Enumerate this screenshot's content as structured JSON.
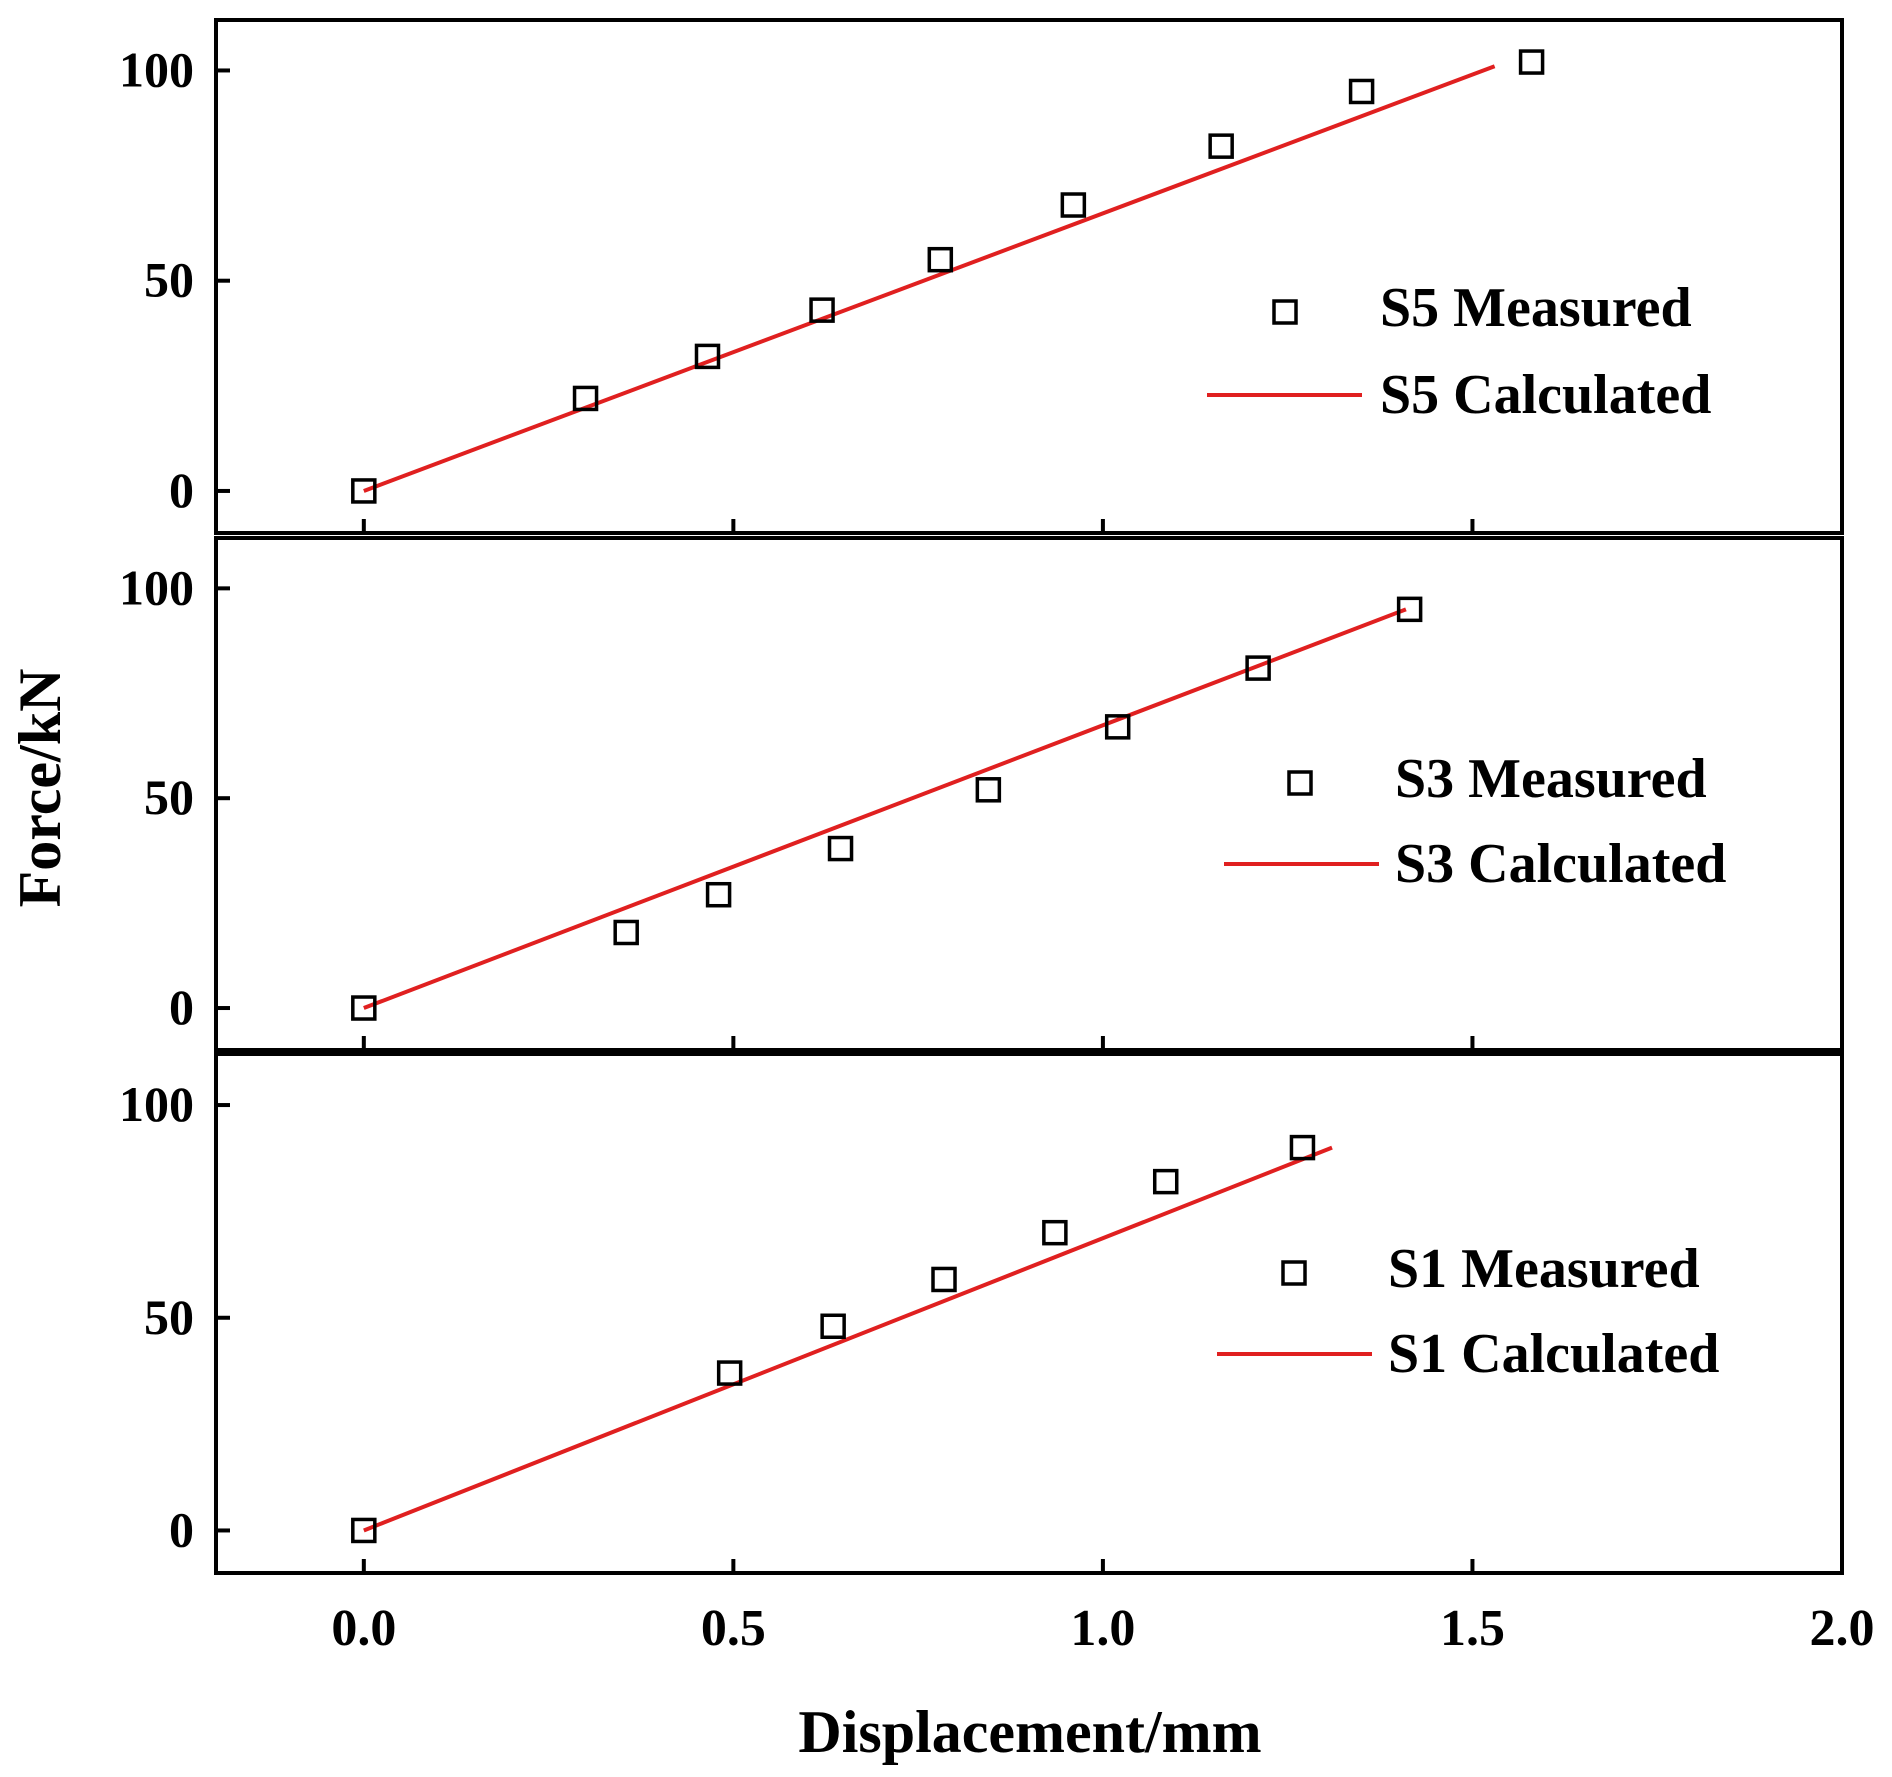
{
  "chart_data": {
    "type": "scatter",
    "xlabel": "Displacement/mm",
    "ylabel": "Force/kN",
    "xlim": [
      -0.2,
      2.0
    ],
    "ylim": [
      -10,
      112
    ],
    "x_ticks": [
      0.0,
      0.5,
      1.0,
      1.5,
      2.0
    ],
    "x_tick_labels": [
      "0.0",
      "0.5",
      "1.0",
      "1.5",
      "2.0"
    ],
    "y_ticks": [
      0,
      50,
      100
    ],
    "y_tick_labels": [
      "0",
      "50",
      "100"
    ],
    "legend_position": "right",
    "colors": {
      "measured": "#000000",
      "calculated": "#e02020"
    },
    "panels": [
      {
        "name": "S5",
        "series": [
          {
            "name": "S5 Measured",
            "kind": "scatter",
            "marker": "open-square",
            "x": [
              0.0,
              0.3,
              0.465,
              0.62,
              0.78,
              0.96,
              1.16,
              1.35,
              1.58
            ],
            "y": [
              0,
              22,
              32,
              43,
              55,
              68,
              82,
              95,
              102
            ]
          },
          {
            "name": "S5 Calculated",
            "kind": "line",
            "x": [
              0.0,
              1.53
            ],
            "y": [
              0,
              101
            ]
          }
        ]
      },
      {
        "name": "S3",
        "series": [
          {
            "name": "S3 Measured",
            "kind": "scatter",
            "marker": "open-square",
            "x": [
              0.0,
              0.355,
              0.48,
              0.645,
              0.845,
              1.02,
              1.21,
              1.415
            ],
            "y": [
              0,
              18,
              27,
              38,
              52,
              67,
              81,
              95
            ]
          },
          {
            "name": "S3 Calculated",
            "kind": "line",
            "x": [
              0.0,
              1.41
            ],
            "y": [
              0,
              95
            ]
          }
        ]
      },
      {
        "name": "S1",
        "series": [
          {
            "name": "S1 Measured",
            "kind": "scatter",
            "marker": "open-square",
            "x": [
              0.0,
              0.495,
              0.635,
              0.785,
              0.935,
              1.085,
              1.27
            ],
            "y": [
              0,
              37,
              48,
              59,
              70,
              82,
              90
            ]
          },
          {
            "name": "S1 Calculated",
            "kind": "line",
            "x": [
              0.0,
              1.31
            ],
            "y": [
              0,
              90
            ]
          }
        ]
      }
    ]
  }
}
